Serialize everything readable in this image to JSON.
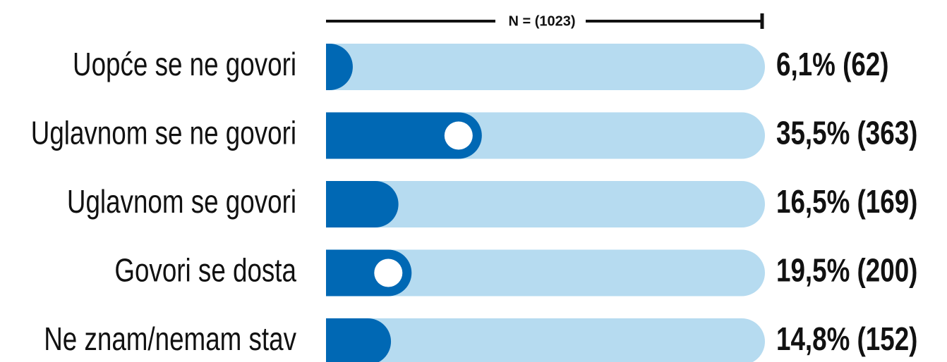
{
  "chart_data": {
    "type": "bar",
    "orientation": "horizontal",
    "n_label": "N = (1023)",
    "categories": [
      "Uopće se ne govori",
      "Uglavnom se ne govori",
      "Uglavnom se govori",
      "Govori se dosta",
      "Ne znam/nemam stav"
    ],
    "values": [
      6.1,
      35.5,
      16.5,
      19.5,
      14.8
    ],
    "value_labels": [
      "6,1% (62)",
      "35,5% (363)",
      "16,5% (169)",
      "19,5% (200)",
      "14,8% (152)"
    ],
    "highlight": [
      false,
      true,
      false,
      true,
      false
    ],
    "xlim": [
      0,
      100
    ],
    "color": "#0068b4",
    "track_color": "#b6dbf0"
  }
}
